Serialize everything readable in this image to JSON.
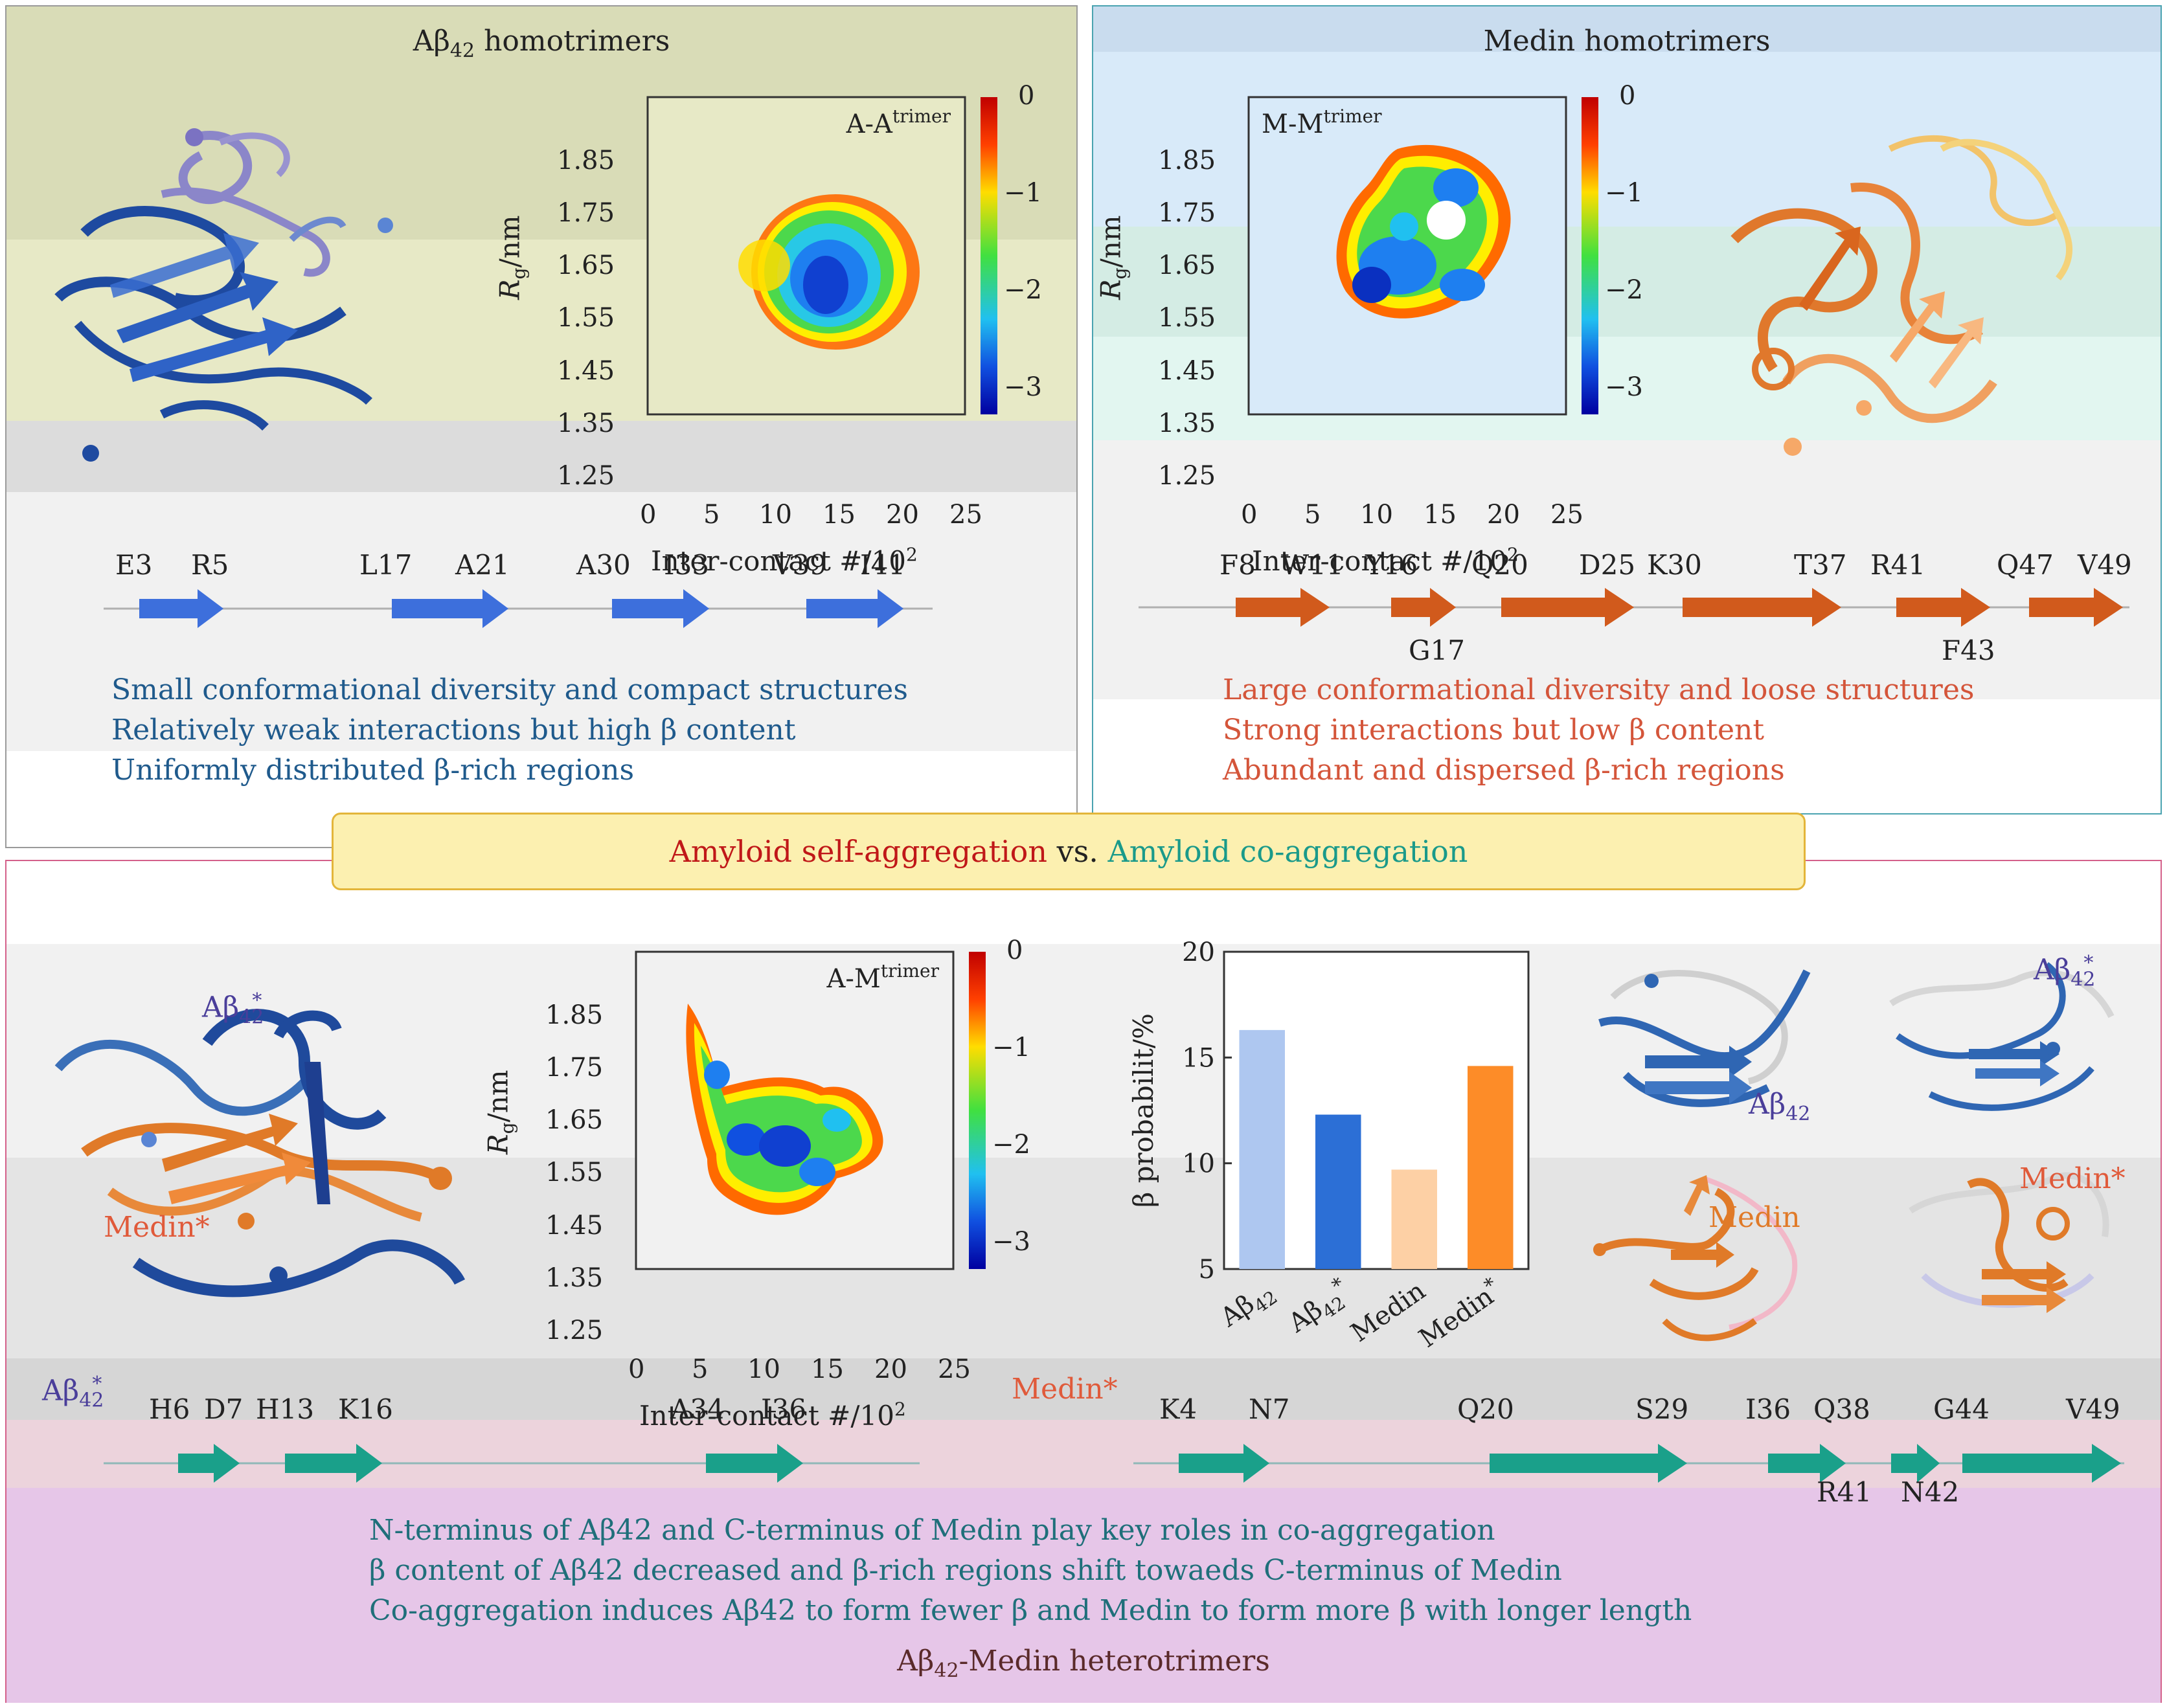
{
  "top_left": {
    "title_prefix": "Aβ",
    "title_sub": "42",
    "title_suffix": " homotrimers",
    "map_label": "A-A",
    "map_label_sup": "trimer",
    "residues": [
      "E3",
      "R5",
      "L17",
      "A21",
      "A30",
      "I33",
      "V39",
      "I41"
    ],
    "findings": [
      "Small conformational diversity and compact structures",
      "Relatively weak interactions but high β content",
      "Uniformly distributed β-rich regions"
    ]
  },
  "top_right": {
    "title": "Medin homotrimers",
    "map_label": "M-M",
    "map_label_sup": "trimer",
    "residues_top": [
      "F8",
      "W11",
      "Y16",
      "Q20",
      "D25",
      "K30",
      "T37",
      "R41",
      "Q47",
      "V49"
    ],
    "residues_bottom": [
      "G17",
      "F43"
    ],
    "findings": [
      "Large conformational diversity and loose structures",
      "Strong interactions but low β content",
      "Abundant and dispersed β-rich regions"
    ]
  },
  "center_banner": {
    "part1": "Amyloid self-aggregation",
    "part2": " vs. ",
    "part3": "Amyloid co-aggregation"
  },
  "bottom": {
    "map_label": "A-M",
    "map_label_sup": "trimer",
    "struct_labels": {
      "abeta_star": "Aβ",
      "abeta_sub": "42",
      "star": "*",
      "medin_star": "Medin*",
      "medin": "Medin"
    },
    "abeta_track_label": "Aβ",
    "abeta_track_sub": "42",
    "abeta_track_star": "*",
    "abeta_residues": [
      "H6",
      "D7",
      "H13",
      "K16",
      "A34",
      "I36"
    ],
    "medin_track_label": "Medin*",
    "medin_residues_top": [
      "K4",
      "N7",
      "Q20",
      "S29",
      "I36",
      "Q38",
      "G44",
      "V49"
    ],
    "medin_residues_bottom": [
      "R41",
      "N42"
    ],
    "findings": [
      "N-terminus of Aβ42 and C-terminus of Medin play key roles in co-aggregation",
      "β content of Aβ42 decreased and β-rich regions shift towaeds C-terminus of Medin",
      "Co-aggregation induces Aβ42 to form fewer β and Medin to form more β with longer length"
    ],
    "footer_prefix": "Aβ",
    "footer_sub": "42",
    "footer_suffix": "-Medin heterotrimers"
  },
  "heatmap_axes": {
    "xlabel": "Inter-contact #/10",
    "xlabel_sup": "2",
    "ylabel": "R",
    "ylabel_sub": "g",
    "ylabel_suffix": "/nm",
    "x_ticks": [
      "0",
      "5",
      "10",
      "15",
      "20",
      "25"
    ],
    "y_ticks": [
      "1.85",
      "1.75",
      "1.65",
      "1.55",
      "1.45",
      "1.35",
      "1.25"
    ],
    "colorbar_ticks": [
      "0",
      "−1",
      "−2",
      "−3"
    ]
  },
  "chart_data": {
    "type": "bar",
    "title": "",
    "ylabel": "β probabilit/%",
    "xlabel": "",
    "categories": [
      "Aβ42",
      "Aβ42*",
      "Medin",
      "Medin*"
    ],
    "category_display": [
      {
        "main": "Aβ",
        "sub": "42",
        "star": ""
      },
      {
        "main": "Aβ",
        "sub": "42",
        "star": "*"
      },
      {
        "main": "Medin",
        "sub": "",
        "star": ""
      },
      {
        "main": "Medin",
        "sub": "",
        "star": "*"
      }
    ],
    "values": [
      16.3,
      12.3,
      9.7,
      14.6
    ],
    "colors": [
      "#aec7f0",
      "#2c6fd6",
      "#fdd0a5",
      "#fd8c28"
    ],
    "ylim": [
      5,
      20
    ],
    "yticks": [
      "5",
      "10",
      "15",
      "20"
    ]
  }
}
